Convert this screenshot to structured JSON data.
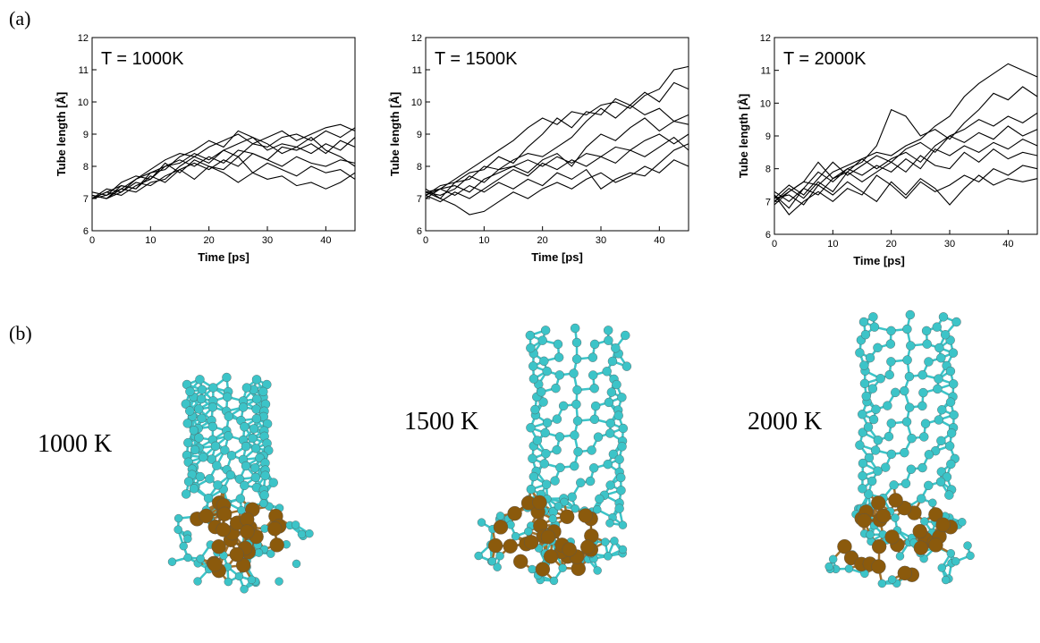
{
  "panel_labels": [
    "(a)",
    "(b)"
  ],
  "structures": [
    {
      "label": "1000 K"
    },
    {
      "label": "1500 K"
    },
    {
      "label": "2000 K"
    }
  ],
  "chart_data": [
    {
      "type": "line",
      "annotation": "T = 1000K",
      "x_label": "Time [ps]",
      "y_label": "Tube length [Å]",
      "xlim": [
        0,
        45
      ],
      "ylim": [
        6,
        12
      ],
      "xticks": [
        0,
        10,
        20,
        30,
        40
      ],
      "yticks": [
        6,
        7,
        8,
        9,
        10,
        11,
        12
      ],
      "x": [
        0,
        2.5,
        5,
        7.5,
        10,
        12.5,
        15,
        17.5,
        20,
        22.5,
        25,
        27.5,
        30,
        32.5,
        35,
        37.5,
        40,
        42.5,
        45
      ],
      "series": [
        {
          "color": "#000000",
          "values": [
            7.1,
            7.0,
            7.3,
            7.6,
            7.9,
            8.2,
            8.4,
            8.3,
            8.6,
            8.8,
            9.0,
            8.7,
            8.9,
            9.1,
            8.8,
            9.0,
            9.2,
            9.3,
            9.1
          ]
        },
        {
          "color": "#000000",
          "values": [
            7.0,
            7.2,
            7.4,
            7.3,
            7.8,
            8.0,
            8.1,
            8.4,
            8.2,
            8.5,
            8.3,
            8.7,
            8.6,
            8.9,
            9.0,
            8.8,
            9.1,
            8.9,
            9.2
          ]
        },
        {
          "color": "#000000",
          "values": [
            7.2,
            7.1,
            7.5,
            7.7,
            7.6,
            8.0,
            8.2,
            8.0,
            8.3,
            8.1,
            8.5,
            8.4,
            8.2,
            8.6,
            8.5,
            8.7,
            8.4,
            8.8,
            8.6
          ]
        },
        {
          "color": "#000000",
          "values": [
            7.0,
            7.3,
            7.2,
            7.6,
            7.8,
            7.9,
            8.3,
            8.5,
            8.8,
            8.6,
            9.1,
            8.9,
            8.5,
            8.7,
            8.6,
            8.4,
            8.7,
            8.5,
            8.9
          ]
        },
        {
          "color": "#000000",
          "values": [
            7.1,
            7.0,
            7.4,
            7.3,
            7.7,
            7.5,
            7.9,
            8.1,
            7.9,
            8.2,
            8.0,
            8.4,
            8.2,
            8.0,
            8.3,
            8.1,
            8.0,
            8.2,
            8.1
          ]
        },
        {
          "color": "#000000",
          "values": [
            7.0,
            7.2,
            7.1,
            7.4,
            7.6,
            8.1,
            7.8,
            8.2,
            8.0,
            7.9,
            8.3,
            7.8,
            8.1,
            7.9,
            7.7,
            8.0,
            7.8,
            7.9,
            7.6
          ]
        },
        {
          "color": "#000000",
          "values": [
            7.1,
            7.0,
            7.2,
            7.5,
            7.4,
            7.7,
            7.9,
            7.6,
            8.0,
            7.8,
            7.5,
            7.8,
            7.6,
            7.7,
            7.4,
            7.5,
            7.3,
            7.5,
            7.8
          ]
        },
        {
          "color": "#000000",
          "values": [
            7.0,
            7.1,
            7.3,
            7.2,
            7.5,
            7.6,
            8.0,
            8.3,
            8.1,
            8.5,
            8.7,
            8.9,
            8.7,
            8.4,
            8.6,
            8.9,
            8.5,
            8.3,
            8.0
          ]
        }
      ]
    },
    {
      "type": "line",
      "annotation": "T = 1500K",
      "x_label": "Time [ps]",
      "y_label": "Tube length [Å]",
      "xlim": [
        0,
        45
      ],
      "ylim": [
        6,
        12
      ],
      "xticks": [
        0,
        10,
        20,
        30,
        40
      ],
      "yticks": [
        6,
        7,
        8,
        9,
        10,
        11,
        12
      ],
      "x": [
        0,
        2.5,
        5,
        7.5,
        10,
        12.5,
        15,
        17.5,
        20,
        22.5,
        25,
        27.5,
        30,
        32.5,
        35,
        37.5,
        40,
        42.5,
        45
      ],
      "series": [
        {
          "color": "#000000",
          "values": [
            7.2,
            7.3,
            7.6,
            7.9,
            8.2,
            8.5,
            8.8,
            9.2,
            9.5,
            9.3,
            9.7,
            9.6,
            9.9,
            10.0,
            9.8,
            10.2,
            10.4,
            11.0,
            11.1
          ]
        },
        {
          "color": "#000000",
          "values": [
            7.1,
            7.4,
            7.5,
            7.8,
            7.9,
            8.3,
            8.1,
            8.6,
            9.0,
            9.5,
            9.2,
            9.7,
            9.6,
            10.1,
            9.9,
            10.3,
            10.0,
            10.6,
            10.4
          ]
        },
        {
          "color": "#000000",
          "values": [
            7.3,
            7.0,
            7.5,
            7.6,
            8.0,
            7.9,
            8.2,
            8.4,
            8.3,
            8.6,
            8.9,
            9.4,
            9.8,
            9.5,
            9.9,
            9.6,
            9.8,
            9.4,
            9.6
          ]
        },
        {
          "color": "#000000",
          "values": [
            7.2,
            7.1,
            7.3,
            7.7,
            7.5,
            7.9,
            8.0,
            7.8,
            8.2,
            8.4,
            8.0,
            8.6,
            9.0,
            8.8,
            9.2,
            9.5,
            9.1,
            9.4,
            9.3
          ]
        },
        {
          "color": "#000000",
          "values": [
            7.0,
            7.3,
            7.4,
            7.2,
            7.6,
            7.8,
            8.0,
            8.2,
            8.0,
            8.3,
            8.1,
            8.4,
            8.3,
            8.6,
            8.5,
            8.8,
            9.0,
            8.7,
            9.0
          ]
        },
        {
          "color": "#000000",
          "values": [
            7.1,
            6.9,
            7.2,
            7.0,
            7.3,
            7.6,
            7.9,
            7.7,
            8.1,
            7.9,
            8.2,
            8.0,
            8.3,
            8.1,
            8.5,
            8.3,
            8.6,
            8.9,
            8.5
          ]
        },
        {
          "color": "#000000",
          "values": [
            7.2,
            7.0,
            6.8,
            6.5,
            6.6,
            6.9,
            7.2,
            7.0,
            7.3,
            7.5,
            7.3,
            7.6,
            7.8,
            7.5,
            7.7,
            8.0,
            7.8,
            8.2,
            8.0
          ]
        },
        {
          "color": "#000000",
          "values": [
            7.1,
            7.3,
            7.1,
            7.4,
            7.2,
            7.5,
            7.3,
            7.6,
            7.4,
            7.8,
            7.6,
            7.9,
            7.3,
            7.6,
            7.8,
            7.7,
            8.1,
            8.5,
            8.7
          ]
        }
      ]
    },
    {
      "type": "line",
      "annotation": "T = 2000K",
      "x_label": "Time [ps]",
      "y_label": "Tube length [Å]",
      "xlim": [
        0,
        45
      ],
      "ylim": [
        6,
        12
      ],
      "xticks": [
        0,
        10,
        20,
        30,
        40
      ],
      "yticks": [
        6,
        7,
        8,
        9,
        10,
        11,
        12
      ],
      "x": [
        0,
        2.5,
        5,
        7.5,
        10,
        12.5,
        15,
        17.5,
        20,
        22.5,
        25,
        27.5,
        30,
        32.5,
        35,
        37.5,
        40,
        42.5,
        45
      ],
      "series": [
        {
          "color": "#000000",
          "values": [
            7.0,
            7.3,
            7.6,
            7.5,
            7.9,
            8.1,
            8.3,
            8.5,
            8.4,
            8.7,
            8.9,
            9.3,
            9.6,
            10.2,
            10.6,
            10.9,
            11.2,
            11.0,
            10.8
          ]
        },
        {
          "color": "#000000",
          "values": [
            7.2,
            6.8,
            7.4,
            7.9,
            7.6,
            8.0,
            8.2,
            8.7,
            9.8,
            9.6,
            9.0,
            9.2,
            8.9,
            9.4,
            9.8,
            10.3,
            10.1,
            10.5,
            10.2
          ]
        },
        {
          "color": "#000000",
          "values": [
            7.1,
            7.5,
            7.2,
            7.7,
            8.2,
            7.8,
            8.1,
            8.4,
            8.2,
            8.6,
            8.8,
            8.5,
            9.0,
            9.2,
            9.5,
            9.3,
            9.6,
            9.4,
            9.7
          ]
        },
        {
          "color": "#000000",
          "values": [
            6.9,
            7.3,
            7.6,
            8.2,
            7.7,
            7.9,
            8.3,
            8.0,
            8.3,
            8.5,
            8.2,
            8.7,
            9.0,
            8.8,
            9.1,
            8.9,
            9.3,
            9.0,
            9.2
          ]
        },
        {
          "color": "#000000",
          "values": [
            7.3,
            7.0,
            7.4,
            7.2,
            7.7,
            8.0,
            7.8,
            8.1,
            7.9,
            8.3,
            8.0,
            8.6,
            8.4,
            8.7,
            8.5,
            8.8,
            8.6,
            8.9,
            8.7
          ]
        },
        {
          "color": "#000000",
          "values": [
            7.0,
            7.4,
            7.1,
            7.6,
            7.3,
            7.9,
            7.6,
            7.9,
            8.2,
            7.9,
            8.4,
            8.1,
            8.0,
            8.5,
            8.2,
            8.6,
            8.3,
            8.5,
            8.4
          ]
        },
        {
          "color": "#000000",
          "values": [
            7.2,
            6.6,
            7.0,
            7.3,
            7.0,
            7.4,
            7.2,
            7.8,
            7.5,
            7.1,
            7.6,
            7.3,
            7.5,
            7.8,
            7.6,
            8.0,
            7.8,
            8.1,
            8.0
          ]
        },
        {
          "color": "#000000",
          "values": [
            7.1,
            7.2,
            6.9,
            7.5,
            7.2,
            7.6,
            7.3,
            7.0,
            7.6,
            7.2,
            7.7,
            7.4,
            6.9,
            7.4,
            7.8,
            7.5,
            7.7,
            7.6,
            7.7
          ]
        }
      ]
    }
  ]
}
